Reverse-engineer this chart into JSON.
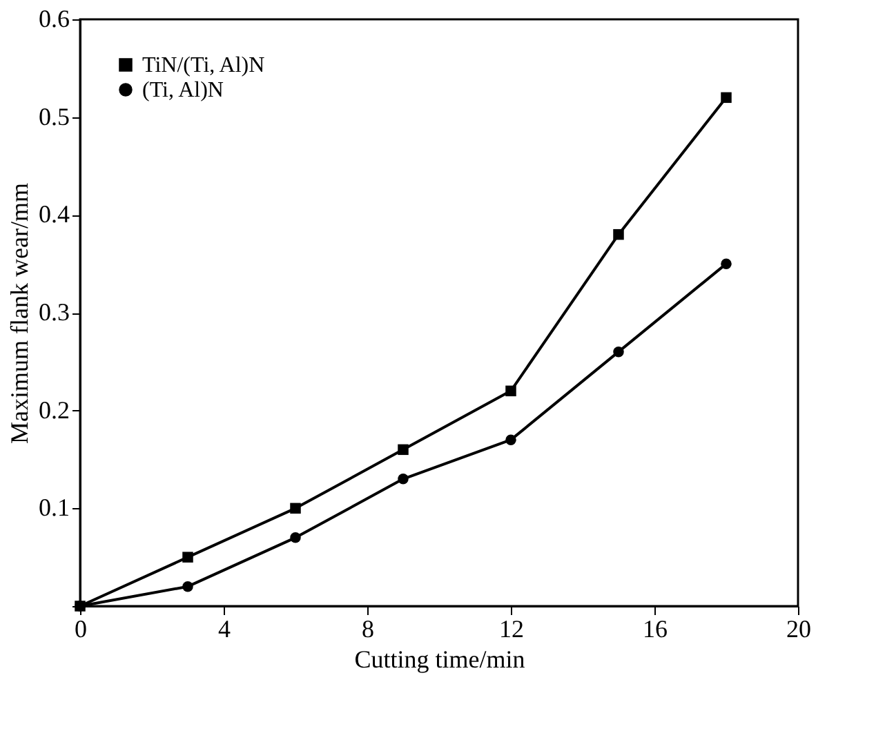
{
  "chart_data": {
    "type": "line",
    "xlabel": "Cutting time/min",
    "ylabel": "Maximum flank wear/mm",
    "x": [
      0,
      3,
      6,
      9,
      12,
      15,
      18
    ],
    "series": [
      {
        "name": "TiN/(Ti, Al)N",
        "color": "#000000",
        "marker": "square",
        "values": [
          0,
          0.05,
          0.1,
          0.16,
          0.22,
          0.38,
          0.52
        ]
      },
      {
        "name": "(Ti, Al)N",
        "color": "#000000",
        "marker": "circle",
        "values": [
          0,
          0.02,
          0.07,
          0.13,
          0.17,
          0.26,
          0.35
        ]
      }
    ],
    "xlim": [
      0,
      20
    ],
    "xticks": [
      0,
      4,
      8,
      12,
      16,
      20
    ],
    "ylim": [
      0,
      0.6
    ],
    "yticks": [
      {
        "value": 0,
        "label": null
      },
      0.1,
      0.2,
      0.3,
      0.4,
      0.5,
      0.6
    ],
    "legend": "top left",
    "grid": false,
    "line_style": "solid"
  }
}
